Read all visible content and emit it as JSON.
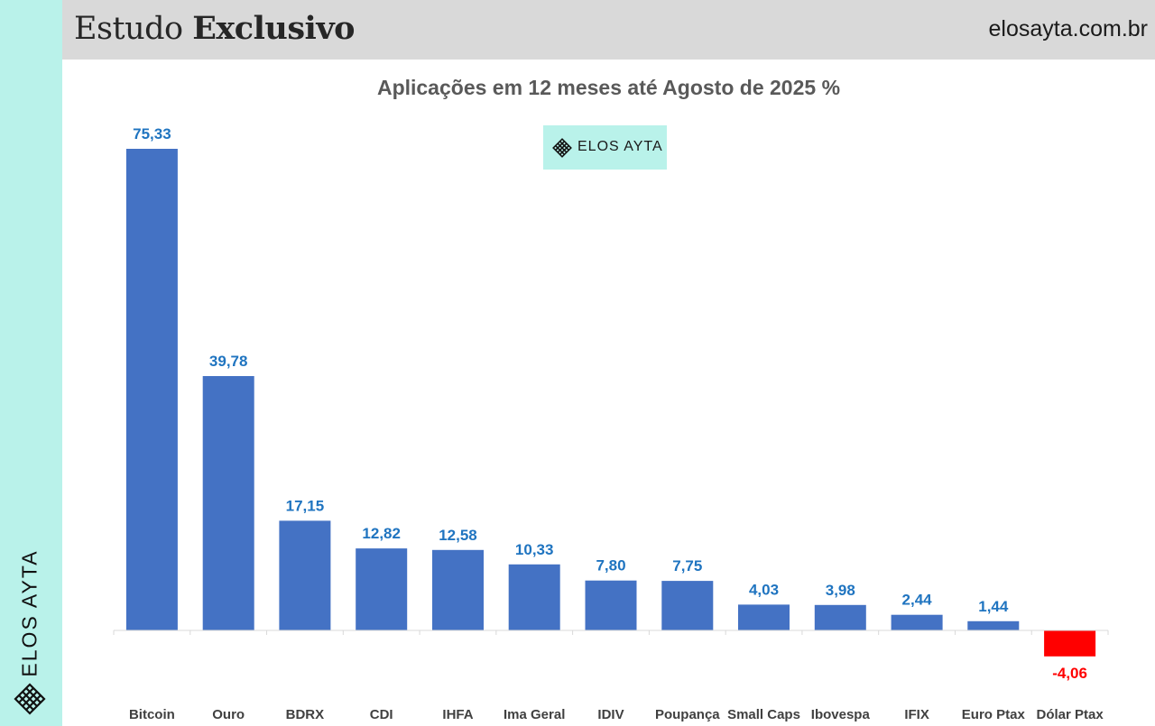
{
  "header": {
    "title_regular": "Estudo",
    "title_bold": "Exclusivo",
    "site": "elosayta.com.br"
  },
  "side": {
    "brand": "ELOS AYTA"
  },
  "watermark": {
    "text": "ELOS AYTA"
  },
  "colors": {
    "positive": "#4472c4",
    "negative": "#ff0000",
    "positive_label": "#1f74c0",
    "negative_label": "#ff0000",
    "accent": "#b9f2ea"
  },
  "chart_data": {
    "type": "bar",
    "title": "Aplicações em 12 meses até Agosto de 2025 %",
    "xlabel": "",
    "ylabel": "",
    "grid": false,
    "categories": [
      "Bitcoin",
      "Ouro",
      "BDRX",
      "CDI",
      "IHFA",
      "Ima Geral",
      "IDIV",
      "Poupança",
      "Small Caps",
      "Ibovespa",
      "IFIX",
      "Euro Ptax",
      "Dólar Ptax"
    ],
    "values": [
      75.33,
      39.78,
      17.15,
      12.82,
      12.58,
      10.33,
      7.8,
      7.75,
      4.03,
      3.98,
      2.44,
      1.44,
      -4.06
    ],
    "value_labels": [
      "75,33",
      "39,78",
      "17,15",
      "12,82",
      "12,58",
      "10,33",
      "7,80",
      "7,75",
      "4,03",
      "3,98",
      "2,44",
      "1,44",
      "-4,06"
    ]
  }
}
